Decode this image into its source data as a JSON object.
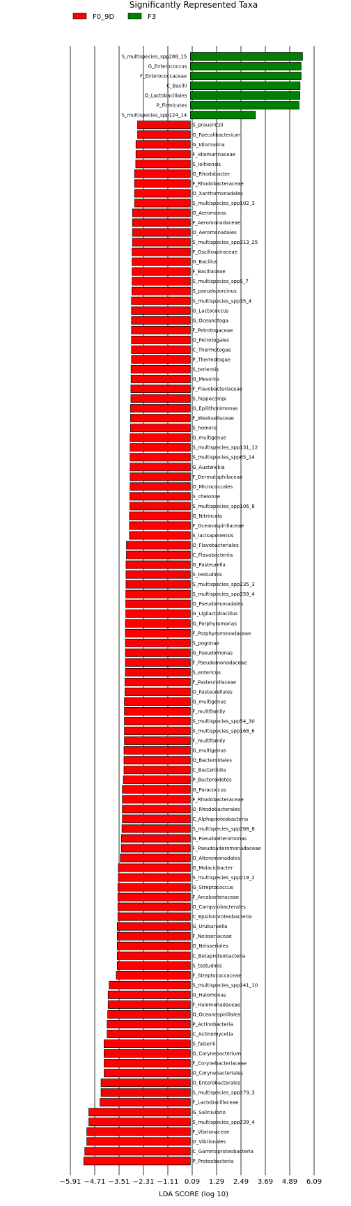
{
  "chart_data": {
    "type": "bar",
    "orientation": "horizontal",
    "title": "Significantly Represented Taxa",
    "xlabel": "LDA SCORE (log 10)",
    "ylabel": "",
    "xlim": [
      -6.2,
      6.5
    ],
    "xticks": [
      -5.91,
      -4.71,
      -3.51,
      -2.31,
      -1.11,
      0.09,
      1.29,
      2.49,
      3.69,
      4.89,
      6.09
    ],
    "xtick_labels": [
      "−5.91",
      "−4.71",
      "−3.51",
      "−2.31",
      "−1.11",
      "0.09",
      "1.29",
      "2.49",
      "3.69",
      "4.89",
      "6.09"
    ],
    "grid": "vertical lines at ticks",
    "legend_placement": "top-left",
    "legend": [
      {
        "name": "F0_9D",
        "color": "#ff0000"
      },
      {
        "name": "F3",
        "color": "#008000"
      }
    ],
    "bars": [
      {
        "label": "S_multispecies_spp288_15",
        "value": 5.52,
        "group": "F3"
      },
      {
        "label": "G_Enterococcus",
        "value": 5.45,
        "group": "F3"
      },
      {
        "label": "F_Enterococcaceae",
        "value": 5.45,
        "group": "F3"
      },
      {
        "label": "C_Bacilli",
        "value": 5.4,
        "group": "F3"
      },
      {
        "label": "O_Lactobacillales",
        "value": 5.39,
        "group": "F3"
      },
      {
        "label": "P_Firmicutes",
        "value": 5.35,
        "group": "F3"
      },
      {
        "label": "S_multispecies_spp124_14",
        "value": 3.2,
        "group": "F3"
      },
      {
        "label": "S_prausnitzii",
        "value": -2.6,
        "group": "F0_9D"
      },
      {
        "label": "G_Faecalibacterium",
        "value": -2.6,
        "group": "F0_9D"
      },
      {
        "label": "G_Idiomarina",
        "value": -2.68,
        "group": "F0_9D"
      },
      {
        "label": "F_Idiomarinaceae",
        "value": -2.68,
        "group": "F0_9D"
      },
      {
        "label": "S_loihiensis",
        "value": -2.69,
        "group": "F0_9D"
      },
      {
        "label": "G_Rhodobacter",
        "value": -2.75,
        "group": "F0_9D"
      },
      {
        "label": "F_Rhodobacteraceae",
        "value": -2.75,
        "group": "F0_9D"
      },
      {
        "label": "O_Xanthomonadales",
        "value": -2.75,
        "group": "F0_9D"
      },
      {
        "label": "S_multispecies_spp102_3",
        "value": -2.75,
        "group": "F0_9D"
      },
      {
        "label": "G_Aeromonas",
        "value": -2.85,
        "group": "F0_9D"
      },
      {
        "label": "F_Aeromonadaceae",
        "value": -2.85,
        "group": "F0_9D"
      },
      {
        "label": "O_Aeromonadales",
        "value": -2.85,
        "group": "F0_9D"
      },
      {
        "label": "S_multispecies_spp313_25",
        "value": -2.85,
        "group": "F0_9D"
      },
      {
        "label": "F_Oscillospiraceae",
        "value": -2.87,
        "group": "F0_9D"
      },
      {
        "label": "G_Bacillus",
        "value": -2.87,
        "group": "F0_9D"
      },
      {
        "label": "F_Bacillaceae",
        "value": -2.87,
        "group": "F0_9D"
      },
      {
        "label": "S_multispecies_spp5_7",
        "value": -2.87,
        "group": "F0_9D"
      },
      {
        "label": "S_pseudoporcinus",
        "value": -2.88,
        "group": "F0_9D"
      },
      {
        "label": "S_multispecies_spp35_4",
        "value": -2.9,
        "group": "F0_9D"
      },
      {
        "label": "G_Lactococcus",
        "value": -2.9,
        "group": "F0_9D"
      },
      {
        "label": "G_Oceanotoga",
        "value": -2.9,
        "group": "F0_9D"
      },
      {
        "label": "F_Petrotogaceae",
        "value": -2.9,
        "group": "F0_9D"
      },
      {
        "label": "O_Petrotogales",
        "value": -2.9,
        "group": "F0_9D"
      },
      {
        "label": "C_Thermotogae",
        "value": -2.9,
        "group": "F0_9D"
      },
      {
        "label": "P_Thermotogae",
        "value": -2.9,
        "group": "F0_9D"
      },
      {
        "label": "S_teriensis",
        "value": -2.92,
        "group": "F0_9D"
      },
      {
        "label": "G_Mesonia",
        "value": -2.92,
        "group": "F0_9D"
      },
      {
        "label": "F_Flavobacteriaceae",
        "value": -2.93,
        "group": "F0_9D"
      },
      {
        "label": "S_hippocampi",
        "value": -2.93,
        "group": "F0_9D"
      },
      {
        "label": "G_Epilithonimonas",
        "value": -2.95,
        "group": "F0_9D"
      },
      {
        "label": "F_Weeksellaceae",
        "value": -2.95,
        "group": "F0_9D"
      },
      {
        "label": "S_hominis",
        "value": -2.95,
        "group": "F0_9D"
      },
      {
        "label": "G_multigenus",
        "value": -2.97,
        "group": "F0_9D"
      },
      {
        "label": "S_multispecies_spp131_12",
        "value": -2.97,
        "group": "F0_9D"
      },
      {
        "label": "S_multispecies_spp65_14",
        "value": -2.97,
        "group": "F0_9D"
      },
      {
        "label": "G_Austwickia",
        "value": -2.97,
        "group": "F0_9D"
      },
      {
        "label": "F_Dermatophilaceae",
        "value": -2.97,
        "group": "F0_9D"
      },
      {
        "label": "O_Micrococcales",
        "value": -2.97,
        "group": "F0_9D"
      },
      {
        "label": "S_chelonae",
        "value": -2.98,
        "group": "F0_9D"
      },
      {
        "label": "S_multispecies_spp106_8",
        "value": -2.98,
        "group": "F0_9D"
      },
      {
        "label": "G_Nitrincola",
        "value": -3.0,
        "group": "F0_9D"
      },
      {
        "label": "F_Oceanospirillaceae",
        "value": -3.0,
        "group": "F0_9D"
      },
      {
        "label": "S_lacisaponensis",
        "value": -3.0,
        "group": "F0_9D"
      },
      {
        "label": "O_Flavobacteriales",
        "value": -3.15,
        "group": "F0_9D"
      },
      {
        "label": "C_Flavobacteriia",
        "value": -3.15,
        "group": "F0_9D"
      },
      {
        "label": "G_Pasteurella",
        "value": -3.17,
        "group": "F0_9D"
      },
      {
        "label": "S_testudinis",
        "value": -3.17,
        "group": "F0_9D"
      },
      {
        "label": "S_multispecies_spp235_3",
        "value": -3.17,
        "group": "F0_9D"
      },
      {
        "label": "S_multispecies_spp259_4",
        "value": -3.18,
        "group": "F0_9D"
      },
      {
        "label": "O_Pseudomonadales",
        "value": -3.18,
        "group": "F0_9D"
      },
      {
        "label": "G_Ligilactobacillus",
        "value": -3.18,
        "group": "F0_9D"
      },
      {
        "label": "G_Porphyromonas",
        "value": -3.2,
        "group": "F0_9D"
      },
      {
        "label": "F_Porphyromonadaceae",
        "value": -3.2,
        "group": "F0_9D"
      },
      {
        "label": "S_pogonae",
        "value": -3.2,
        "group": "F0_9D"
      },
      {
        "label": "G_Pseudomonas",
        "value": -3.2,
        "group": "F0_9D"
      },
      {
        "label": "F_Pseudomonadaceae",
        "value": -3.2,
        "group": "F0_9D"
      },
      {
        "label": "S_entericus",
        "value": -3.2,
        "group": "F0_9D"
      },
      {
        "label": "F_Pasteurellaceae",
        "value": -3.22,
        "group": "F0_9D"
      },
      {
        "label": "O_Pasteurellales",
        "value": -3.22,
        "group": "F0_9D"
      },
      {
        "label": "G_multigenus",
        "value": -3.25,
        "group": "F0_9D"
      },
      {
        "label": "F_multifamily",
        "value": -3.25,
        "group": "F0_9D"
      },
      {
        "label": "S_multispecies_spp54_30",
        "value": -3.25,
        "group": "F0_9D"
      },
      {
        "label": "S_multispecies_spp168_6",
        "value": -3.25,
        "group": "F0_9D"
      },
      {
        "label": "F_multifamily",
        "value": -3.25,
        "group": "F0_9D"
      },
      {
        "label": "G_multigenus",
        "value": -3.27,
        "group": "F0_9D"
      },
      {
        "label": "O_Bacteroidales",
        "value": -3.27,
        "group": "F0_9D"
      },
      {
        "label": "C_Bacteroidia",
        "value": -3.27,
        "group": "F0_9D"
      },
      {
        "label": "P_Bacteroidetes",
        "value": -3.3,
        "group": "F0_9D"
      },
      {
        "label": "G_Paracoccus",
        "value": -3.35,
        "group": "F0_9D"
      },
      {
        "label": "F_Rhodobacteraceae",
        "value": -3.35,
        "group": "F0_9D"
      },
      {
        "label": "O_Rhodobacterales",
        "value": -3.35,
        "group": "F0_9D"
      },
      {
        "label": "C_Alphaproteobacteria",
        "value": -3.35,
        "group": "F0_9D"
      },
      {
        "label": "S_multispecies_spp268_8",
        "value": -3.37,
        "group": "F0_9D"
      },
      {
        "label": "G_Pseudoalteromonas",
        "value": -3.4,
        "group": "F0_9D"
      },
      {
        "label": "F_Pseudoalteromonadaceae",
        "value": -3.4,
        "group": "F0_9D"
      },
      {
        "label": "O_Alteromonadales",
        "value": -3.45,
        "group": "F0_9D"
      },
      {
        "label": "G_Malaciobacter",
        "value": -3.55,
        "group": "F0_9D"
      },
      {
        "label": "S_multispecies_spp219_2",
        "value": -3.55,
        "group": "F0_9D"
      },
      {
        "label": "G_Streptococcus",
        "value": -3.57,
        "group": "F0_9D"
      },
      {
        "label": "F_Arcobacteraceae",
        "value": -3.57,
        "group": "F0_9D"
      },
      {
        "label": "O_Campylobacterales",
        "value": -3.57,
        "group": "F0_9D"
      },
      {
        "label": "C_Epsilonproteobacteria",
        "value": -3.57,
        "group": "F0_9D"
      },
      {
        "label": "G_Uruburuella",
        "value": -3.6,
        "group": "F0_9D"
      },
      {
        "label": "F_Neisseriaceae",
        "value": -3.6,
        "group": "F0_9D"
      },
      {
        "label": "O_Neisseriales",
        "value": -3.6,
        "group": "F0_9D"
      },
      {
        "label": "C_Betaproteobacteria",
        "value": -3.6,
        "group": "F0_9D"
      },
      {
        "label": "S_testudinis",
        "value": -3.6,
        "group": "F0_9D"
      },
      {
        "label": "F_Streptococcaceae",
        "value": -3.65,
        "group": "F0_9D"
      },
      {
        "label": "S_multispecies_spp241_10",
        "value": -4.0,
        "group": "F0_9D"
      },
      {
        "label": "G_Halomonas",
        "value": -4.05,
        "group": "F0_9D"
      },
      {
        "label": "F_Halomonadaceae",
        "value": -4.05,
        "group": "F0_9D"
      },
      {
        "label": "O_Oceanospirillales",
        "value": -4.07,
        "group": "F0_9D"
      },
      {
        "label": "P_Actinobacteria",
        "value": -4.1,
        "group": "F0_9D"
      },
      {
        "label": "C_Actinomycetia",
        "value": -4.1,
        "group": "F0_9D"
      },
      {
        "label": "S_falsenii",
        "value": -4.25,
        "group": "F0_9D"
      },
      {
        "label": "G_Corynebacterium",
        "value": -4.25,
        "group": "F0_9D"
      },
      {
        "label": "F_Corynebacteriaceae",
        "value": -4.25,
        "group": "F0_9D"
      },
      {
        "label": "O_Corynebacteriales",
        "value": -4.25,
        "group": "F0_9D"
      },
      {
        "label": "O_Enterobacterales",
        "value": -4.4,
        "group": "F0_9D"
      },
      {
        "label": "S_multispecies_spp279_3",
        "value": -4.4,
        "group": "F0_9D"
      },
      {
        "label": "F_Lactobacillaceae",
        "value": -4.45,
        "group": "F0_9D"
      },
      {
        "label": "G_Salinivibrio",
        "value": -5.0,
        "group": "F0_9D"
      },
      {
        "label": "S_multispecies_spp239_4",
        "value": -5.0,
        "group": "F0_9D"
      },
      {
        "label": "F_Vibrionaceae",
        "value": -5.1,
        "group": "F0_9D"
      },
      {
        "label": "O_Vibrionales",
        "value": -5.1,
        "group": "F0_9D"
      },
      {
        "label": "C_Gammaproteobacteria",
        "value": -5.2,
        "group": "F0_9D"
      },
      {
        "label": "P_Proteobacteria",
        "value": -5.25,
        "group": "F0_9D"
      }
    ]
  }
}
